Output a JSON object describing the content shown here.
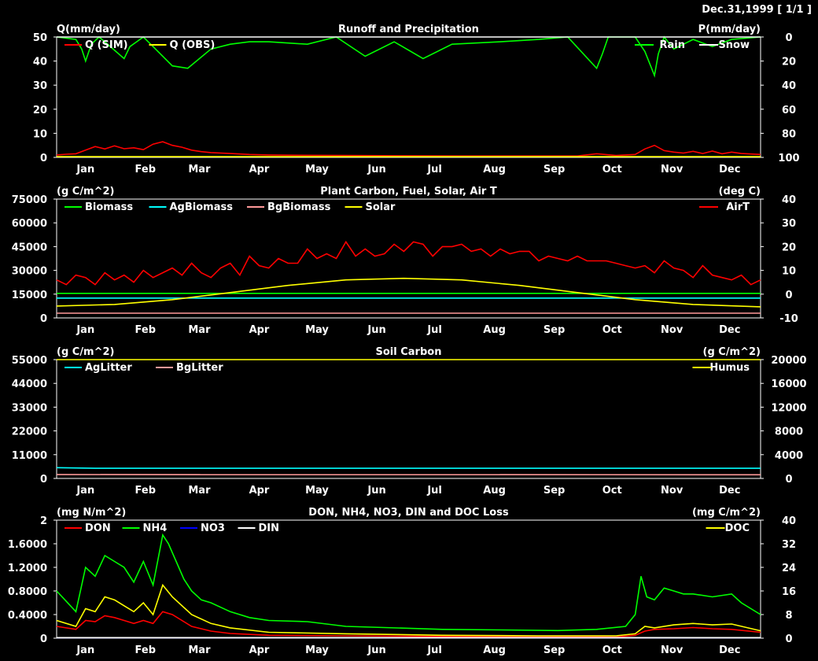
{
  "header": {
    "date": "Dec.31,1999 [ 1/1 ]"
  },
  "months": [
    "Jan",
    "Feb",
    "Mar",
    "Apr",
    "May",
    "Jun",
    "Jul",
    "Aug",
    "Sep",
    "Oct",
    "Nov",
    "Dec"
  ],
  "chart_data": [
    {
      "type": "line",
      "title": "Runoff and Precipitation",
      "ylabel": "Q(mm/day)",
      "y2label": "P(mm/day)",
      "ylim": [
        0,
        50
      ],
      "y2lim": [
        100,
        0
      ],
      "yticks": [
        "50",
        "40",
        "30",
        "20",
        "10",
        "0"
      ],
      "y2ticks": [
        "0",
        "20",
        "40",
        "60",
        "80",
        "100"
      ],
      "legend": [
        {
          "name": "Q (SIM)",
          "color": "#ff0000",
          "pos": "left"
        },
        {
          "name": "Q (OBS)",
          "color": "#ffff00",
          "pos": "left"
        },
        {
          "name": "Rain",
          "color": "#00ff00",
          "pos": "right"
        },
        {
          "name": "Snow",
          "color": "#ffffff",
          "pos": "right"
        }
      ],
      "series": [
        {
          "name": "Q (SIM)",
          "axis": "left",
          "color": "#ff0000",
          "x": [
            0,
            5,
            10,
            15,
            20,
            25,
            30,
            35,
            40,
            45,
            50,
            55,
            60,
            65,
            70,
            75,
            80,
            90,
            100,
            110,
            120,
            150,
            180,
            210,
            240,
            270,
            280,
            290,
            300,
            305,
            310,
            315,
            320,
            325,
            330,
            335,
            340,
            345,
            350,
            355,
            365
          ],
          "y": [
            1,
            1.3,
            1.5,
            3,
            4.5,
            3.5,
            4.8,
            3.6,
            4,
            3.2,
            5.5,
            6.5,
            5,
            4.2,
            3,
            2.4,
            2,
            1.6,
            1.2,
            1,
            0.9,
            0.8,
            0.7,
            0.6,
            0.6,
            0.6,
            1.5,
            0.8,
            1.2,
            3.5,
            5,
            2.8,
            2.2,
            1.8,
            2.5,
            1.6,
            2.6,
            1.5,
            2.2,
            1.6,
            1.2
          ]
        },
        {
          "name": "Q (OBS)",
          "axis": "left",
          "color": "#ffff00",
          "x": [
            0,
            365
          ],
          "y": [
            0.3,
            0.3
          ]
        },
        {
          "name": "Rain",
          "axis": "right",
          "color": "#00ff00",
          "x": [
            0,
            10,
            13,
            15,
            18,
            22,
            25,
            35,
            38,
            45,
            50,
            60,
            68,
            80,
            90,
            100,
            110,
            130,
            145,
            160,
            175,
            190,
            205,
            230,
            250,
            265,
            280,
            283,
            286,
            300,
            305,
            308,
            310,
            312,
            315,
            320,
            330,
            340,
            350,
            365
          ],
          "y": [
            0,
            2,
            10,
            20,
            6,
            0,
            4,
            18,
            8,
            0,
            8,
            24,
            26,
            10,
            6,
            4,
            4,
            6,
            0,
            16,
            4,
            18,
            6,
            4,
            2,
            0,
            26,
            14,
            0,
            0,
            12,
            24,
            32,
            14,
            0,
            10,
            2,
            8,
            2,
            0
          ]
        },
        {
          "name": "Snow",
          "axis": "right",
          "color": "#ffffff",
          "x": [
            0,
            365
          ],
          "y": [
            0,
            0
          ]
        }
      ]
    },
    {
      "type": "line",
      "title": "Plant Carbon, Fuel, Solar, Air T",
      "ylabel": "(g C/m^2)",
      "y2label": "(deg C)",
      "ylim": [
        0,
        75000
      ],
      "y2lim": [
        -10,
        40
      ],
      "yticks": [
        "75000",
        "60000",
        "45000",
        "30000",
        "15000",
        "0"
      ],
      "y2ticks": [
        "40",
        "30",
        "20",
        "10",
        "0",
        "-10"
      ],
      "legend": [
        {
          "name": "Biomass",
          "color": "#00ff00",
          "pos": "left"
        },
        {
          "name": "AgBiomass",
          "color": "#00ffff",
          "pos": "left"
        },
        {
          "name": "BgBiomass",
          "color": "#ff9999",
          "pos": "left"
        },
        {
          "name": "Solar",
          "color": "#ffff00",
          "pos": "left"
        },
        {
          "name": "AirT",
          "color": "#ff0000",
          "pos": "right"
        }
      ],
      "series": [
        {
          "name": "Biomass",
          "axis": "left",
          "color": "#00ff00",
          "x": [
            0,
            365
          ],
          "y": [
            15500,
            15500
          ]
        },
        {
          "name": "AgBiomass",
          "axis": "left",
          "color": "#00ffff",
          "x": [
            0,
            365
          ],
          "y": [
            12500,
            12500
          ]
        },
        {
          "name": "BgBiomass",
          "axis": "left",
          "color": "#ff9999",
          "x": [
            0,
            365
          ],
          "y": [
            3000,
            3000
          ]
        },
        {
          "name": "Solar",
          "axis": "left",
          "color": "#ffff00",
          "x": [
            0,
            30,
            60,
            90,
            120,
            150,
            180,
            210,
            240,
            270,
            300,
            330,
            365
          ],
          "y": [
            7500,
            8500,
            11500,
            16000,
            20500,
            24000,
            25000,
            24000,
            20500,
            16000,
            11500,
            8500,
            7000
          ]
        },
        {
          "name": "AirT",
          "axis": "right",
          "color": "#ff0000",
          "x": [
            0,
            5,
            10,
            15,
            20,
            25,
            30,
            35,
            40,
            45,
            50,
            55,
            60,
            65,
            70,
            75,
            80,
            85,
            90,
            95,
            100,
            105,
            110,
            115,
            120,
            125,
            130,
            135,
            140,
            145,
            150,
            155,
            160,
            165,
            170,
            175,
            180,
            185,
            190,
            195,
            200,
            205,
            210,
            215,
            220,
            225,
            230,
            235,
            240,
            245,
            250,
            255,
            260,
            265,
            270,
            275,
            280,
            285,
            290,
            295,
            300,
            305,
            310,
            315,
            320,
            325,
            330,
            335,
            340,
            345,
            350,
            355,
            360,
            365
          ],
          "y": [
            6,
            4,
            8,
            7,
            4,
            9,
            6,
            8,
            5,
            10,
            7,
            9,
            11,
            8,
            13,
            9,
            7,
            11,
            13,
            8,
            16,
            12,
            11,
            15,
            13,
            13,
            19,
            15,
            17,
            15,
            22,
            16,
            19,
            16,
            17,
            21,
            18,
            22,
            21,
            16,
            20,
            20,
            21,
            18,
            19,
            16,
            19,
            17,
            18,
            18,
            14,
            16,
            15,
            14,
            16,
            14,
            14,
            14,
            13,
            12,
            11,
            12,
            9,
            14,
            11,
            10,
            7,
            12,
            8,
            7,
            6,
            8,
            4,
            6
          ]
        }
      ]
    },
    {
      "type": "line",
      "title": "Soil Carbon",
      "ylabel": "(g C/m^2)",
      "y2label": "(g C/m^2)",
      "ylim": [
        0,
        55000
      ],
      "y2lim": [
        0,
        20000
      ],
      "yticks": [
        "55000",
        "44000",
        "33000",
        "22000",
        "11000",
        "0"
      ],
      "y2ticks": [
        "20000",
        "16000",
        "12000",
        "8000",
        "4000",
        "0"
      ],
      "legend": [
        {
          "name": "AgLitter",
          "color": "#00ffff",
          "pos": "left"
        },
        {
          "name": "BgLitter",
          "color": "#ff9999",
          "pos": "left"
        },
        {
          "name": "Humus",
          "color": "#ffff00",
          "pos": "right"
        }
      ],
      "series": [
        {
          "name": "AgLitter",
          "axis": "left",
          "color": "#00ffff",
          "x": [
            0,
            20,
            365
          ],
          "y": [
            5000,
            4700,
            4700
          ]
        },
        {
          "name": "BgLitter",
          "axis": "left",
          "color": "#ff9999",
          "x": [
            0,
            365
          ],
          "y": [
            1800,
            1700
          ]
        },
        {
          "name": "Humus",
          "axis": "right",
          "color": "#ffff00",
          "x": [
            0,
            300,
            365
          ],
          "y": [
            21500,
            21700,
            21900
          ]
        }
      ]
    },
    {
      "type": "line",
      "title": "DON, NH4, NO3, DIN and DOC Loss",
      "ylabel": "(mg N/m^2)",
      "y2label": "(mg C/m^2)",
      "ylim": [
        0,
        2
      ],
      "y2lim": [
        0,
        40
      ],
      "yticks": [
        "2",
        "1.6000",
        "1.2000",
        "0.8000",
        "0.4000",
        "0"
      ],
      "y2ticks": [
        "40",
        "32",
        "24",
        "16",
        "8",
        "0"
      ],
      "legend": [
        {
          "name": "DON",
          "color": "#ff0000",
          "pos": "left"
        },
        {
          "name": "NH4",
          "color": "#00ff00",
          "pos": "left"
        },
        {
          "name": "NO3",
          "color": "#0000ff",
          "pos": "left"
        },
        {
          "name": "DIN",
          "color": "#ffffff",
          "pos": "left"
        },
        {
          "name": "DOC",
          "color": "#ffff00",
          "pos": "right"
        }
      ],
      "series": [
        {
          "name": "DON",
          "axis": "left",
          "color": "#ff0000",
          "x": [
            0,
            10,
            15,
            20,
            25,
            30,
            35,
            40,
            45,
            50,
            55,
            60,
            70,
            80,
            90,
            110,
            150,
            200,
            250,
            290,
            300,
            305,
            310,
            320,
            330,
            340,
            350,
            365
          ],
          "y": [
            0.2,
            0.15,
            0.3,
            0.28,
            0.38,
            0.35,
            0.3,
            0.25,
            0.3,
            0.25,
            0.45,
            0.4,
            0.2,
            0.12,
            0.08,
            0.05,
            0.04,
            0.03,
            0.03,
            0.02,
            0.05,
            0.12,
            0.15,
            0.16,
            0.18,
            0.16,
            0.15,
            0.1
          ]
        },
        {
          "name": "NH4",
          "axis": "left",
          "color": "#00ff00",
          "x": [
            0,
            10,
            15,
            20,
            25,
            30,
            35,
            40,
            45,
            50,
            55,
            58,
            62,
            66,
            70,
            75,
            80,
            90,
            100,
            110,
            130,
            150,
            170,
            200,
            230,
            260,
            280,
            295,
            300,
            303,
            306,
            310,
            315,
            320,
            325,
            330,
            340,
            350,
            355,
            365
          ],
          "y": [
            0.8,
            0.45,
            1.2,
            1.05,
            1.4,
            1.3,
            1.2,
            0.95,
            1.3,
            0.9,
            1.75,
            1.6,
            1.3,
            1.0,
            0.8,
            0.65,
            0.6,
            0.45,
            0.35,
            0.3,
            0.28,
            0.2,
            0.18,
            0.15,
            0.14,
            0.13,
            0.15,
            0.2,
            0.4,
            1.05,
            0.7,
            0.65,
            0.85,
            0.8,
            0.75,
            0.75,
            0.7,
            0.75,
            0.6,
            0.4
          ]
        },
        {
          "name": "NO3",
          "axis": "left",
          "color": "#0000ff",
          "x": [
            0,
            365
          ],
          "y": [
            0.01,
            0.01
          ]
        },
        {
          "name": "DIN",
          "axis": "left",
          "color": "#ffffff",
          "x": [
            0,
            365
          ],
          "y": [
            0.01,
            0.01
          ]
        },
        {
          "name": "DOC",
          "axis": "right",
          "color": "#ffff00",
          "x": [
            0,
            10,
            15,
            20,
            25,
            30,
            35,
            40,
            45,
            50,
            55,
            60,
            70,
            80,
            90,
            110,
            150,
            200,
            250,
            290,
            300,
            305,
            310,
            320,
            330,
            340,
            350,
            365
          ],
          "y": [
            6,
            4,
            10,
            9,
            14,
            13,
            11,
            9,
            12,
            8,
            18,
            14,
            8,
            5,
            3.5,
            2,
            1.5,
            1,
            0.8,
            0.8,
            1.5,
            4,
            3.5,
            4.5,
            5,
            4.5,
            4.8,
            2.5
          ]
        }
      ]
    }
  ]
}
